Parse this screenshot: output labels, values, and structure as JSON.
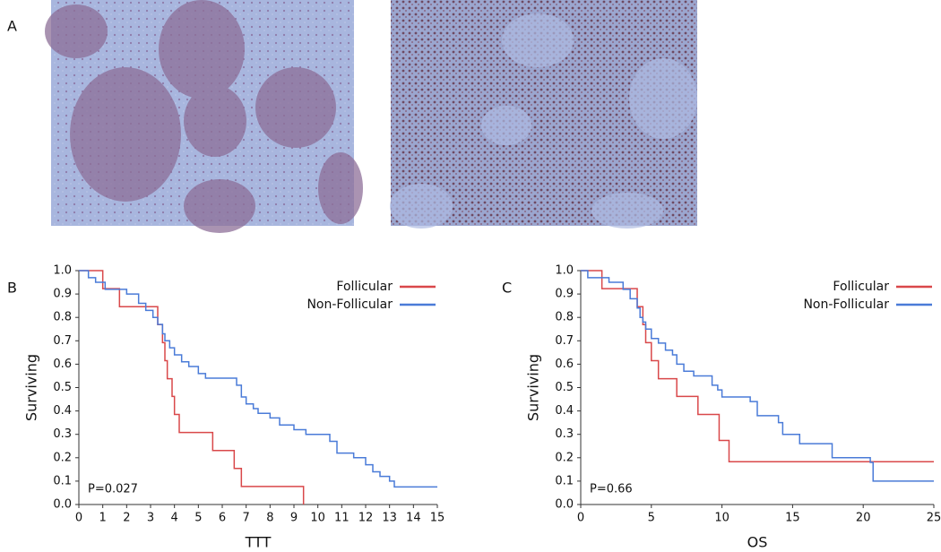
{
  "panel_labels": [
    "A",
    "B",
    "C"
  ],
  "chart_data": [
    {
      "type": "step",
      "x_label": "TTT",
      "y_label": "Surviving",
      "annotation": "P=0.027",
      "legend": "top-right",
      "xlim": [
        0,
        15
      ],
      "xticks": [
        0,
        1,
        2,
        3,
        4,
        5,
        6,
        7,
        8,
        9,
        10,
        11,
        12,
        13,
        14,
        15
      ],
      "ylim": [
        0,
        1
      ],
      "yticks": [
        {
          "value": 0,
          "label": "0.0"
        },
        0.1,
        0.2,
        0.3,
        0.4,
        0.5,
        0.6,
        0.7,
        0.8,
        0.9,
        {
          "value": 1,
          "label": "1.0"
        }
      ],
      "series": [
        {
          "name": "Follicular",
          "color": "#d9484a",
          "x": [
            0,
            1.0,
            1.7,
            3.3,
            3.5,
            3.6,
            3.7,
            3.9,
            4.0,
            4.2,
            5.6,
            6.5,
            6.8,
            9.4
          ],
          "values": [
            1,
            0.923,
            0.846,
            0.769,
            0.692,
            0.615,
            0.538,
            0.462,
            0.385,
            0.308,
            0.231,
            0.154,
            0.077,
            0
          ]
        },
        {
          "name": "Non-Follicular",
          "color": "#4a7bd8",
          "x": [
            0,
            0.4,
            0.7,
            1.1,
            2.0,
            2.5,
            2.8,
            3.1,
            3.3,
            3.5,
            3.6,
            3.8,
            4.0,
            4.3,
            4.6,
            5.0,
            5.3,
            6.6,
            6.8,
            7.0,
            7.3,
            7.5,
            8.0,
            8.4,
            9.0,
            9.5,
            10.5,
            10.8,
            11.5,
            12.0,
            12.3,
            12.6,
            13.0,
            13.2,
            15
          ],
          "values": [
            1,
            0.97,
            0.95,
            0.92,
            0.9,
            0.86,
            0.83,
            0.8,
            0.77,
            0.73,
            0.7,
            0.67,
            0.64,
            0.61,
            0.59,
            0.56,
            0.54,
            0.51,
            0.46,
            0.43,
            0.41,
            0.39,
            0.37,
            0.34,
            0.32,
            0.3,
            0.27,
            0.22,
            0.2,
            0.17,
            0.14,
            0.12,
            0.1,
            0.075,
            0.075
          ]
        }
      ]
    },
    {
      "type": "step",
      "x_label": "OS",
      "y_label": "Surviving",
      "annotation": "P=0.66",
      "legend": "top-right",
      "xlim": [
        0,
        25
      ],
      "xticks": [
        0,
        5,
        10,
        15,
        20,
        25
      ],
      "ylim": [
        0,
        1
      ],
      "yticks": [
        {
          "value": 0,
          "label": "0.0"
        },
        0.1,
        0.2,
        0.3,
        0.4,
        0.5,
        0.6,
        0.7,
        0.8,
        0.9,
        {
          "value": 1,
          "label": "1.0"
        }
      ],
      "series": [
        {
          "name": "Follicular",
          "color": "#d9484a",
          "x": [
            0,
            1.5,
            4.0,
            4.4,
            4.6,
            5.0,
            5.5,
            6.8,
            8.3,
            9.8,
            10.5,
            25
          ],
          "values": [
            1,
            0.923,
            0.846,
            0.769,
            0.692,
            0.615,
            0.538,
            0.462,
            0.385,
            0.274,
            0.183,
            0.183
          ]
        },
        {
          "name": "Non-Follicular",
          "color": "#4a7bd8",
          "x": [
            0,
            0.5,
            2.0,
            3.0,
            3.5,
            4.0,
            4.2,
            4.4,
            4.6,
            5.0,
            5.5,
            6.0,
            6.5,
            6.8,
            7.3,
            8.0,
            9.3,
            9.7,
            10.0,
            12.0,
            12.5,
            14.0,
            14.3,
            15.5,
            17.8,
            20.5,
            20.7,
            25
          ],
          "values": [
            1,
            0.97,
            0.95,
            0.92,
            0.88,
            0.84,
            0.8,
            0.78,
            0.75,
            0.71,
            0.69,
            0.66,
            0.64,
            0.6,
            0.57,
            0.55,
            0.51,
            0.49,
            0.46,
            0.44,
            0.38,
            0.35,
            0.3,
            0.26,
            0.2,
            0.18,
            0.1,
            0.1
          ]
        }
      ]
    }
  ]
}
